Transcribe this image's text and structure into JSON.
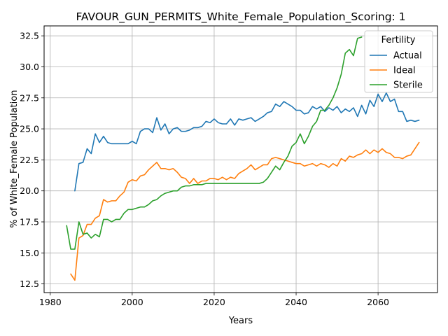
{
  "chart_data": {
    "type": "line",
    "title": "FAVOUR_GUN_PERMITS_White_Female_Population_Scoring: 1",
    "xlabel": "Years",
    "ylabel": "% of White_Female Population",
    "xlim": [
      1978.5,
      2074.5
    ],
    "ylim": [
      11.8,
      33.3
    ],
    "xticks": [
      1980,
      2000,
      2020,
      2040,
      2060
    ],
    "yticks": [
      12.5,
      15.0,
      17.5,
      20.0,
      22.5,
      25.0,
      27.5,
      30.0,
      32.5
    ],
    "grid": true,
    "legend": {
      "title": "Fertility",
      "position": "top-right"
    },
    "series": [
      {
        "name": "Actual",
        "color": "#1f77b4",
        "x": [
          1986,
          1987,
          1988,
          1989,
          1990,
          1991,
          1992,
          1993,
          1994,
          1995,
          1996,
          1997,
          1998,
          1999,
          2000,
          2001,
          2002,
          2003,
          2004,
          2005,
          2006,
          2007,
          2008,
          2009,
          2010,
          2011,
          2012,
          2013,
          2014,
          2015,
          2016,
          2017,
          2018,
          2019,
          2020,
          2021,
          2022,
          2023,
          2024,
          2025,
          2026,
          2027,
          2028,
          2029,
          2030,
          2031,
          2032,
          2033,
          2034,
          2035,
          2036,
          2037,
          2038,
          2039,
          2040,
          2041,
          2042,
          2043,
          2044,
          2045,
          2046,
          2047,
          2048,
          2049,
          2050,
          2051,
          2052,
          2053,
          2054,
          2055,
          2056,
          2057,
          2058,
          2059,
          2060,
          2061,
          2062,
          2063,
          2064,
          2065,
          2066,
          2067,
          2068,
          2069,
          2070
        ],
        "y": [
          20.0,
          22.2,
          22.3,
          23.4,
          23.0,
          24.6,
          23.9,
          24.4,
          23.9,
          23.8,
          23.8,
          23.8,
          23.8,
          23.8,
          24.0,
          23.8,
          24.8,
          25.0,
          25.0,
          24.7,
          25.9,
          24.9,
          25.4,
          24.6,
          25.0,
          25.1,
          24.8,
          24.8,
          24.9,
          25.1,
          25.1,
          25.2,
          25.6,
          25.5,
          25.8,
          25.5,
          25.4,
          25.4,
          25.8,
          25.3,
          25.8,
          25.7,
          25.8,
          25.9,
          25.6,
          25.8,
          26.0,
          26.3,
          26.4,
          27.0,
          26.8,
          27.2,
          27.0,
          26.8,
          26.5,
          26.5,
          26.2,
          26.3,
          26.8,
          26.6,
          26.8,
          26.4,
          26.7,
          26.5,
          26.8,
          26.3,
          26.6,
          26.4,
          26.7,
          26.0,
          26.9,
          26.2,
          27.3,
          26.8,
          27.8,
          27.2,
          27.9,
          27.2,
          27.4,
          26.4,
          26.4,
          25.6,
          25.7,
          25.6,
          25.7
        ]
      },
      {
        "name": "Ideal",
        "color": "#ff7f0e",
        "x": [
          1985,
          1986,
          1987,
          1988,
          1989,
          1990,
          1991,
          1992,
          1993,
          1994,
          1995,
          1996,
          1997,
          1998,
          1999,
          2000,
          2001,
          2002,
          2003,
          2004,
          2005,
          2006,
          2007,
          2008,
          2009,
          2010,
          2011,
          2012,
          2013,
          2014,
          2015,
          2016,
          2017,
          2018,
          2019,
          2020,
          2021,
          2022,
          2023,
          2024,
          2025,
          2026,
          2027,
          2028,
          2029,
          2030,
          2031,
          2032,
          2033,
          2034,
          2035,
          2036,
          2037,
          2038,
          2039,
          2040,
          2041,
          2042,
          2043,
          2044,
          2045,
          2046,
          2047,
          2048,
          2049,
          2050,
          2051,
          2052,
          2053,
          2054,
          2055,
          2056,
          2057,
          2058,
          2059,
          2060,
          2061,
          2062,
          2063,
          2064,
          2065,
          2066,
          2067,
          2068,
          2069,
          2070
        ],
        "y": [
          13.3,
          12.8,
          16.2,
          16.4,
          17.3,
          17.3,
          17.8,
          18.0,
          19.3,
          19.1,
          19.2,
          19.2,
          19.6,
          19.9,
          20.7,
          20.9,
          20.8,
          21.2,
          21.3,
          21.7,
          22.0,
          22.3,
          21.8,
          21.8,
          21.7,
          21.8,
          21.5,
          21.1,
          21.0,
          20.6,
          21.0,
          20.6,
          20.8,
          20.8,
          21.0,
          21.0,
          20.9,
          21.1,
          20.9,
          21.1,
          21.0,
          21.4,
          21.6,
          21.8,
          22.1,
          21.7,
          21.9,
          22.1,
          22.1,
          22.6,
          22.7,
          22.6,
          22.5,
          22.4,
          22.3,
          22.2,
          22.2,
          22.0,
          22.1,
          22.2,
          22.0,
          22.2,
          22.1,
          21.9,
          22.2,
          22.0,
          22.6,
          22.4,
          22.8,
          22.7,
          22.9,
          23.0,
          23.3,
          23.0,
          23.3,
          23.1,
          23.4,
          23.1,
          23.0,
          22.7,
          22.7,
          22.6,
          22.8,
          22.9,
          23.4,
          23.9
        ]
      },
      {
        "name": "Sterile",
        "color": "#2ca02c",
        "x": [
          1984,
          1985,
          1986,
          1987,
          1988,
          1989,
          1990,
          1991,
          1992,
          1993,
          1994,
          1995,
          1996,
          1997,
          1998,
          1999,
          2000,
          2001,
          2002,
          2003,
          2004,
          2005,
          2006,
          2007,
          2008,
          2009,
          2010,
          2011,
          2012,
          2013,
          2014,
          2015,
          2016,
          2017,
          2018,
          2019,
          2020,
          2021,
          2022,
          2023,
          2024,
          2025,
          2026,
          2027,
          2028,
          2029,
          2030,
          2031,
          2032,
          2033,
          2034,
          2035,
          2036,
          2037,
          2038,
          2039,
          2040,
          2041,
          2042,
          2043,
          2044,
          2045,
          2046,
          2047,
          2048,
          2049,
          2050,
          2051,
          2052,
          2053,
          2054,
          2055,
          2056
        ],
        "y": [
          17.2,
          15.3,
          15.3,
          17.5,
          16.5,
          16.6,
          16.2,
          16.5,
          16.3,
          17.7,
          17.7,
          17.5,
          17.7,
          17.7,
          18.2,
          18.5,
          18.5,
          18.6,
          18.7,
          18.7,
          18.9,
          19.2,
          19.3,
          19.6,
          19.8,
          19.9,
          20.0,
          20.0,
          20.3,
          20.4,
          20.4,
          20.5,
          20.5,
          20.5,
          20.6,
          20.6,
          20.6,
          20.6,
          20.6,
          20.6,
          20.6,
          20.6,
          20.6,
          20.6,
          20.6,
          20.6,
          20.6,
          20.6,
          20.7,
          21.0,
          21.5,
          22.0,
          21.7,
          22.3,
          22.8,
          23.6,
          23.9,
          24.6,
          23.8,
          24.4,
          25.2,
          25.6,
          26.5,
          26.5,
          26.9,
          27.5,
          28.3,
          29.4,
          31.1,
          31.4,
          30.9,
          32.3,
          32.4
        ]
      }
    ]
  }
}
